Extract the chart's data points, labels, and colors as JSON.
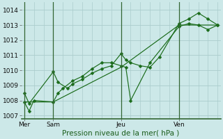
{
  "bg_color": "#cce8e8",
  "grid_color": "#aacccc",
  "line_color": "#1a6b1a",
  "ylabel": "Pression niveau de la mer( hPa )",
  "ylim": [
    1006.8,
    1014.5
  ],
  "yticks": [
    1007,
    1008,
    1009,
    1010,
    1011,
    1012,
    1013,
    1014
  ],
  "xtick_labels": [
    "Mer",
    "Sam",
    "Jeu",
    "Ven"
  ],
  "xtick_positions": [
    0,
    3,
    10,
    16
  ],
  "x_total_min": -0.3,
  "x_total_max": 20.3,
  "line1_x": [
    0,
    0.5,
    3,
    3.5,
    4.5,
    5,
    6,
    7,
    8,
    9,
    10,
    10.5,
    11,
    12,
    13,
    14,
    16,
    17,
    18,
    19,
    20
  ],
  "line1_y": [
    1008.5,
    1007.8,
    1009.9,
    1009.2,
    1008.8,
    1009.1,
    1009.4,
    1009.8,
    1010.1,
    1010.3,
    1011.1,
    1010.7,
    1010.5,
    1010.3,
    1010.2,
    1010.9,
    1013.1,
    1013.4,
    1013.8,
    1013.4,
    1013.0
  ],
  "line2_x": [
    0,
    0.5,
    1,
    3,
    3.5,
    4,
    5,
    6,
    7,
    8,
    9,
    10,
    10.5,
    11,
    13,
    16,
    17,
    18,
    19,
    20
  ],
  "line2_y": [
    1007.9,
    1007.3,
    1008.0,
    1007.9,
    1008.5,
    1008.8,
    1009.3,
    1009.6,
    1010.1,
    1010.5,
    1010.5,
    1010.3,
    1010.2,
    1008.0,
    1010.5,
    1012.9,
    1013.1,
    1013.0,
    1012.7,
    1013.0
  ],
  "line3_x": [
    0,
    3,
    10,
    16,
    20
  ],
  "line3_y": [
    1007.9,
    1007.9,
    1010.2,
    1013.0,
    1013.0
  ],
  "vline_positions": [
    0,
    3,
    10,
    16
  ],
  "marker_size": 2.5,
  "label_fontsize": 7.5,
  "tick_fontsize": 6.5,
  "bottom_line_color": "#336633"
}
